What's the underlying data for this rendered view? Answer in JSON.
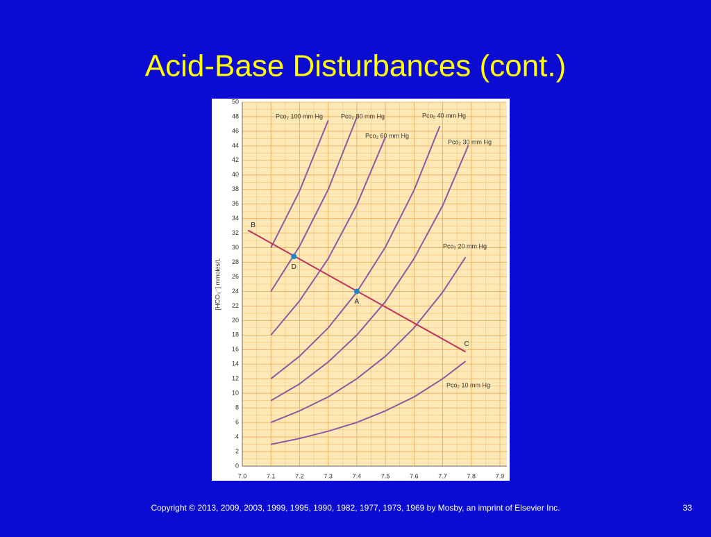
{
  "title": "Acid-Base Disturbances (cont.)",
  "footer": {
    "copyright": "Copyright © 2013, 2009, 2003, 1999, 1995, 1990, 1982, 1977, 1973, 1969 by Mosby, an imprint of Elsevier Inc.",
    "page": "33"
  },
  "chart_data": {
    "type": "line",
    "ylabel": "[HCO₃⁻] mmoles/L",
    "xlim": [
      7.0,
      7.9
    ],
    "xticks": [
      {
        "value": 7.0,
        "label": "7.0"
      },
      7.1,
      7.2,
      7.3,
      7.4,
      7.5,
      7.6,
      7.7,
      7.8,
      7.9
    ],
    "ylim": [
      0,
      50
    ],
    "yticks": [
      0,
      2,
      4,
      6,
      8,
      10,
      12,
      14,
      16,
      18,
      20,
      22,
      24,
      26,
      28,
      30,
      32,
      34,
      36,
      38,
      40,
      42,
      44,
      46,
      48,
      50
    ],
    "grid": true,
    "series": [
      {
        "name": "Pco₂ 100 mm Hg",
        "color": "#8a5aa0",
        "x": [
          7.1,
          7.2,
          7.3
        ],
        "values": [
          30.0,
          37.8,
          47.5
        ]
      },
      {
        "name": "Pco₂ 80 mm Hg",
        "color": "#8a5aa0",
        "x": [
          7.1,
          7.2,
          7.3,
          7.4
        ],
        "values": [
          24.0,
          30.2,
          38.0,
          47.9
        ]
      },
      {
        "name": "Pco₂ 60 mm Hg",
        "color": "#8a5aa0",
        "x": [
          7.1,
          7.2,
          7.3,
          7.4,
          7.5
        ],
        "values": [
          18.0,
          22.7,
          28.5,
          35.9,
          45.2
        ]
      },
      {
        "name": "Pco₂ 40 mm Hg",
        "color": "#8a5aa0",
        "x": [
          7.1,
          7.2,
          7.3,
          7.4,
          7.5,
          7.6,
          7.69
        ],
        "values": [
          12.0,
          15.1,
          19.0,
          23.9,
          30.1,
          37.9,
          46.7
        ]
      },
      {
        "name": "Pco₂ 30 mm Hg",
        "color": "#8a5aa0",
        "x": [
          7.1,
          7.2,
          7.3,
          7.4,
          7.5,
          7.6,
          7.7,
          7.79
        ],
        "values": [
          9.0,
          11.3,
          14.3,
          18.0,
          22.6,
          28.5,
          35.8,
          44.1
        ]
      },
      {
        "name": "Pco₂ 20 mm Hg",
        "color": "#8a5aa0",
        "x": [
          7.1,
          7.2,
          7.3,
          7.4,
          7.5,
          7.6,
          7.7,
          7.78
        ],
        "values": [
          6.0,
          7.6,
          9.5,
          12.0,
          15.1,
          19.0,
          23.9,
          28.7
        ]
      },
      {
        "name": "Pco₂ 10 mm Hg",
        "color": "#8a5aa0",
        "x": [
          7.1,
          7.2,
          7.3,
          7.4,
          7.5,
          7.6,
          7.7,
          7.78
        ],
        "values": [
          3.0,
          3.8,
          4.8,
          6.0,
          7.6,
          9.5,
          12.0,
          14.4
        ]
      }
    ],
    "line": {
      "color": "#c0305a",
      "x": [
        7.02,
        7.78
      ],
      "values": [
        32.4,
        15.7
      ],
      "labels": [
        "B",
        "C"
      ]
    },
    "point_color": "#1e88c8",
    "points": [
      {
        "label": "D",
        "x": 7.18,
        "value": 28.8
      },
      {
        "label": "A",
        "x": 7.4,
        "value": 24.0
      }
    ]
  }
}
